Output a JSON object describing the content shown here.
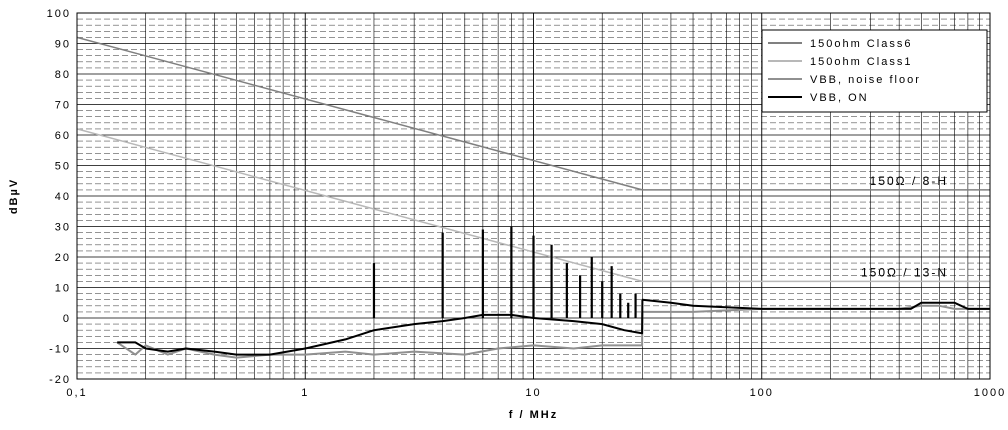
{
  "chart_data": {
    "type": "line",
    "title": "",
    "xlabel": "f / MHz",
    "ylabel": "dBµV",
    "xscale": "log",
    "xlim": [
      0.1,
      1000
    ],
    "ylim": [
      -20,
      100
    ],
    "xticks": [
      {
        "v": 0.1,
        "label": "0,1"
      },
      {
        "v": 1,
        "label": "1"
      },
      {
        "v": 10,
        "label": "10"
      },
      {
        "v": 100,
        "label": "100"
      },
      {
        "v": 1000,
        "label": "1000"
      }
    ],
    "yticks": [
      -20,
      -10,
      0,
      10,
      20,
      30,
      40,
      50,
      60,
      70,
      80,
      90,
      100
    ],
    "grid": true,
    "legend_position": "top-right",
    "series": [
      {
        "name": "150ohm Class6",
        "color": "#808080",
        "x": [
          0.1,
          30,
          1000
        ],
        "y": [
          92,
          42,
          42
        ]
      },
      {
        "name": "150ohm Class1",
        "color": "#b8b8b8",
        "x": [
          0.1,
          30,
          1000
        ],
        "y": [
          62,
          12,
          12
        ]
      },
      {
        "name": "VBB, noise floor",
        "color": "#909090",
        "x": [
          0.15,
          0.18,
          0.2,
          0.25,
          0.3,
          0.4,
          0.5,
          0.7,
          1,
          1.5,
          2,
          3,
          5,
          7,
          10,
          15,
          20,
          25,
          29.9,
          30,
          50,
          100,
          200,
          400,
          500,
          600,
          700,
          800,
          1000
        ],
        "y": [
          -8,
          -12,
          -9,
          -12,
          -10,
          -12,
          -13,
          -12,
          -12,
          -11,
          -12,
          -11,
          -12,
          -10,
          -9,
          -10,
          -9,
          -9,
          -9,
          2,
          2,
          3,
          3,
          3,
          4,
          4,
          3,
          3,
          3
        ]
      },
      {
        "name": "VBB, ON",
        "color": "#000000",
        "x": [
          0.15,
          0.18,
          0.2,
          0.25,
          0.3,
          0.4,
          0.5,
          0.7,
          1,
          1.5,
          2,
          3,
          4,
          5,
          6,
          7,
          8,
          10,
          15,
          20,
          25,
          29.9,
          30,
          40,
          50,
          100,
          200,
          400,
          450,
          500,
          600,
          700,
          800,
          1000
        ],
        "y": [
          -8,
          -8,
          -10,
          -11,
          -10,
          -11,
          -12,
          -12,
          -10,
          -7,
          -4,
          -2,
          -1,
          0,
          1,
          1,
          1,
          0,
          -1,
          -2,
          -4,
          -5,
          6,
          5,
          4,
          3,
          3,
          3,
          3,
          5,
          5,
          5,
          3,
          3
        ]
      }
    ],
    "spikes": {
      "series": "VBB, ON",
      "x": [
        2,
        4,
        6,
        8,
        10,
        12,
        14,
        16,
        18,
        20,
        22,
        24,
        26,
        28
      ],
      "y": [
        18,
        28,
        29,
        30,
        27,
        24,
        18,
        14,
        20,
        12,
        17,
        8,
        5,
        8
      ]
    },
    "annotations": [
      {
        "text": "150Ω / 8-H",
        "x": 1000,
        "y": 42
      },
      {
        "text": "150Ω / 13-N",
        "x": 1000,
        "y": 12
      }
    ]
  }
}
